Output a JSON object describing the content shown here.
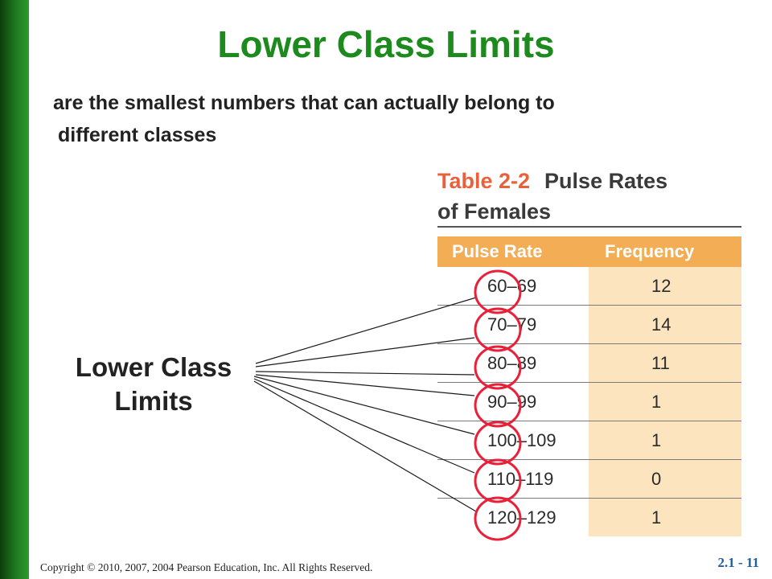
{
  "slide": {
    "title": "Lower Class Limits",
    "subtitle_line1": "are the smallest numbers that can actually belong to",
    "subtitle_line2": "different classes",
    "side_label_line1": "Lower Class",
    "side_label_line2": "Limits",
    "footer": "Copyright © 2010, 2007, 2004 Pearson Education, Inc. All Rights Reserved.",
    "slide_number": "2.1 - 11"
  },
  "table": {
    "number": "Table 2-2",
    "title_line1": "Pulse Rates",
    "title_line2": "of Females",
    "headers": [
      "Pulse Rate",
      "Frequency"
    ],
    "rows": [
      [
        "60–69",
        "12"
      ],
      [
        "70–79",
        "14"
      ],
      [
        "80–89",
        "11"
      ],
      [
        "90–99",
        "1"
      ],
      [
        "100–109",
        "1"
      ],
      [
        "110–119",
        "0"
      ],
      [
        "120–129",
        "1"
      ]
    ]
  },
  "colors": {
    "title_green": "#1d8a1d",
    "sidebar_green": "#1f7a1f",
    "table_header_orange": "#f3ad54",
    "table_number_orange": "#e8613a",
    "frequency_bg": "#fce4bf",
    "circle_red": "#e8203a"
  }
}
